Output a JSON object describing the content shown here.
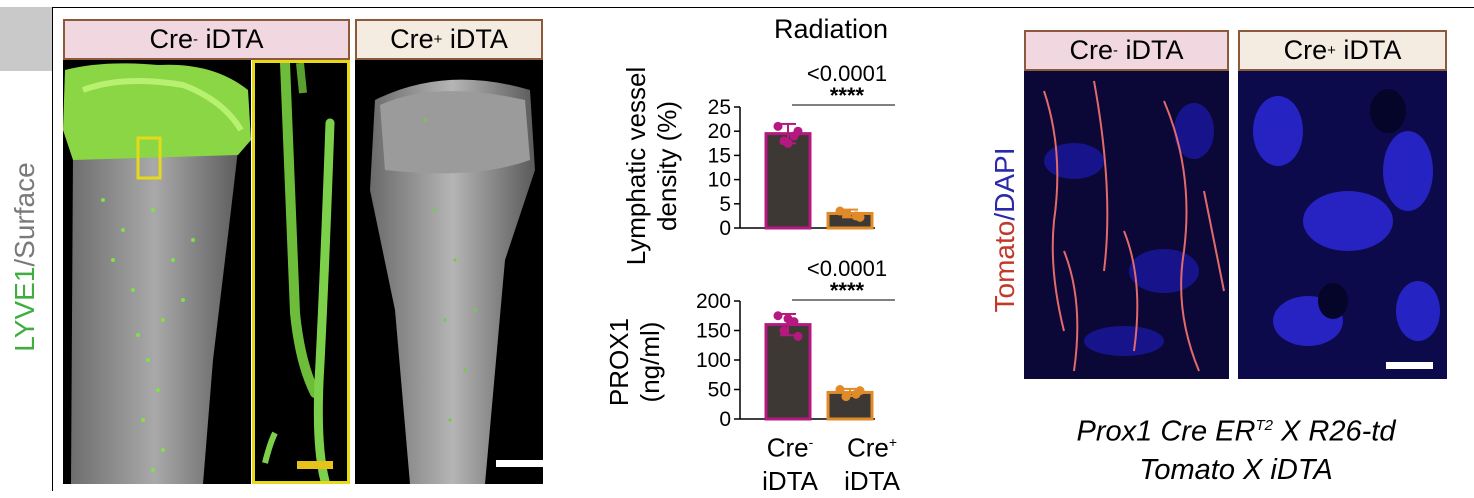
{
  "left_figure": {
    "side_label_part1": "LYVE1",
    "side_label_part2": "/Surface",
    "header_cre_neg": {
      "prefix": "Cre",
      "sup": "-",
      "suffix": " iDTA"
    },
    "header_cre_pos": {
      "prefix": "Cre",
      "sup": "+",
      "suffix": " iDTA"
    }
  },
  "middle_figure": {
    "title": "Radiation",
    "colors": {
      "cre_neg": "#b5187f",
      "cre_pos": "#e08a2a",
      "bar_fill": "#3d3833"
    },
    "x_labels": [
      {
        "line1_prefix": "Cre",
        "line1_sup": "-",
        "line2": "iDTA"
      },
      {
        "line1_prefix": "Cre",
        "line1_sup": "+",
        "line2": "iDTA"
      }
    ]
  },
  "chart_data": [
    {
      "type": "bar",
      "ylabel": "Lymphatic vessel density (%)",
      "ylabel_lines": [
        "Lymphatic vessel",
        "density (%)"
      ],
      "ylim": [
        0,
        25
      ],
      "yticks": [
        0,
        5,
        10,
        15,
        20,
        25
      ],
      "categories": [
        "Cre- iDTA",
        "Cre+ iDTA"
      ],
      "values": [
        19.5,
        3.0
      ],
      "errors": [
        2.0,
        0.8
      ],
      "points": [
        [
          21,
          19,
          18,
          20,
          17.5
        ],
        [
          3.5,
          2.5,
          3.0,
          2.2
        ]
      ],
      "significance": {
        "p": "<0.0001",
        "stars": "****"
      }
    },
    {
      "type": "bar",
      "ylabel": "PROX1 (ng/ml)",
      "ylabel_lines": [
        "PROX1",
        "(ng/ml)"
      ],
      "ylim": [
        0,
        200
      ],
      "yticks": [
        0,
        50,
        100,
        150,
        200
      ],
      "categories": [
        "Cre- iDTA",
        "Cre+ iDTA"
      ],
      "values": [
        160,
        45
      ],
      "errors": [
        18,
        6
      ],
      "points": [
        [
          175,
          165,
          150,
          140,
          170
        ],
        [
          50,
          42,
          38,
          48
        ]
      ],
      "significance": {
        "p": "<0.0001",
        "stars": "****"
      }
    }
  ],
  "right_figure": {
    "side_label_part1": "Tomato",
    "side_label_part2": "/DAPI",
    "header_cre_neg": {
      "prefix": "Cre",
      "sup": "-",
      "suffix": " iDTA"
    },
    "header_cre_pos": {
      "prefix": "Cre",
      "sup": "+",
      "suffix": " iDTA"
    },
    "caption_line1_a": "Prox1 Cre ER",
    "caption_line1_sup": "T2",
    "caption_line1_b": " X R26-td",
    "caption_line2": "Tomato X iDTA"
  }
}
